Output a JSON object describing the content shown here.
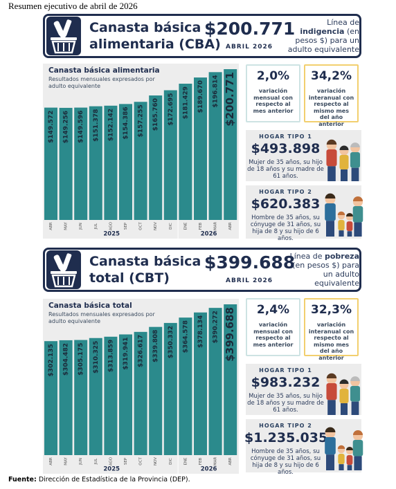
{
  "page_title": "Resumen ejecutivo de abril de 2026",
  "sections": [
    {
      "title_lines": [
        "Canasta básica",
        "alimentaria (CBA)"
      ],
      "amount": "$200.771",
      "period": "ABRIL 2026",
      "line_prefix": "Línea de",
      "line_bold": "indigencia",
      "line_suffix": "(en pesos $) para un adulto equivalente",
      "indicators": [
        {
          "value": "2,0%",
          "text": "variación mensual con respecto al mes anterior"
        },
        {
          "value": "34,2%",
          "text": "variación interanual con respecto al mismo mes del año anterior"
        }
      ],
      "households": [
        {
          "label": "HOGAR TIPO 1",
          "amount": "$493.898",
          "text": "Mujer de 35 años, su hijo de 18 años y su madre de 61 años."
        },
        {
          "label": "HOGAR TIPO 2",
          "amount": "$620.383",
          "text": "Hombre de 35 años, su cónyuge de 31 años, su hija de 8 y su hijo de 6 años."
        }
      ]
    },
    {
      "title_lines": [
        "Canasta básica",
        "total (CBT)"
      ],
      "amount": "$399.688",
      "period": "ABRIL 2026",
      "line_prefix": "Línea de",
      "line_bold": "pobreza",
      "line_suffix": "(en pesos $) para un adulto equivalente",
      "indicators": [
        {
          "value": "2,4%",
          "text": "variación mensual con respecto al mes anterior"
        },
        {
          "value": "32,3%",
          "text": "variación interanual con respecto al mismo mes del año anterior"
        }
      ],
      "households": [
        {
          "label": "HOGAR TIPO 1",
          "amount": "$983.232",
          "text": "Mujer de 35 años, su hijo de 18 años y su madre de 61 años."
        },
        {
          "label": "HOGAR TIPO 2",
          "amount": "$1.235.035",
          "text": "Hombre de 35 años, su cónyuge de 31 años, su hija de 8 y su hijo de 6 años."
        }
      ]
    }
  ],
  "chart_data": [
    {
      "type": "bar",
      "title": "Canasta básica alimentaria",
      "subtitle": "Resultados mensuales expresados por adulto equivalente",
      "categories": [
        "ABR",
        "MAY",
        "JUN",
        "JUL",
        "AGO",
        "SEP",
        "OCT",
        "NOV",
        "DIC",
        "ENE",
        "FEB",
        "MAR",
        "ABR"
      ],
      "year_labels": [
        "2025",
        "2026"
      ],
      "values": [
        149572,
        149256,
        149596,
        151378,
        152142,
        154386,
        157255,
        165760,
        172695,
        181429,
        189670,
        196814,
        200771
      ],
      "value_labels": [
        "$149.572",
        "$149.256",
        "$149.596",
        "$151.378",
        "$152.142",
        "$154.386",
        "$157.255",
        "$165.760",
        "$172.695",
        "$181.429",
        "$189.670",
        "$196.814",
        "$200.771"
      ],
      "color": "#2b8a8c"
    },
    {
      "type": "bar",
      "title": "Canasta básica total",
      "subtitle": "Resultados mensuales expresados por adulto equivalente",
      "categories": [
        "ABR",
        "MAY",
        "JUN",
        "JUL",
        "AGO",
        "SEP",
        "OCT",
        "NOV",
        "DIC",
        "ENE",
        "FEB",
        "MAR",
        "ABR"
      ],
      "year_labels": [
        "2025",
        "2026"
      ],
      "values": [
        302135,
        304482,
        305175,
        310325,
        313859,
        319941,
        326617,
        339808,
        350332,
        364578,
        378134,
        390272,
        399688
      ],
      "value_labels": [
        "$302.135",
        "$304.482",
        "$305.175",
        "$310.325",
        "$313.859",
        "$319.941",
        "$326.617",
        "$339.808",
        "$350.332",
        "$364.578",
        "$378.134",
        "$390.272",
        "$399.688"
      ],
      "color": "#2b8a8c"
    }
  ],
  "source_label": "Fuente:",
  "source_text": "Dirección de Estadística de la Provincia (DEP)."
}
